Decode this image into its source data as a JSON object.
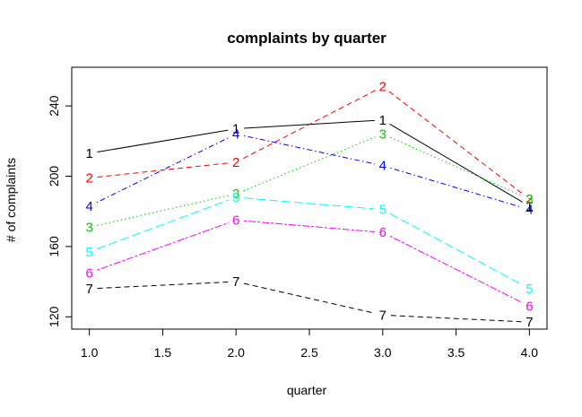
{
  "chart_data": {
    "type": "line",
    "title": "complaints by quarter",
    "xlabel": "quarter",
    "ylabel": "# of complaints",
    "xlim": [
      1.0,
      4.0
    ],
    "ylim": [
      113,
      262
    ],
    "xticks": [
      "1.0",
      "1.5",
      "2.0",
      "2.5",
      "3.0",
      "3.5",
      "4.0"
    ],
    "yticks": [
      "120",
      "160",
      "200",
      "240"
    ],
    "x": [
      1,
      2,
      3,
      4
    ],
    "grid": false,
    "legend": "none",
    "series": [
      {
        "label": "1",
        "values": [
          213,
          227,
          232,
          183
        ],
        "color": "#000000",
        "dash": "solid"
      },
      {
        "label": "2",
        "values": [
          199,
          208,
          251,
          187
        ],
        "color": "#FF0000",
        "dash": "dashed"
      },
      {
        "label": "3",
        "values": [
          171,
          190,
          224,
          187
        ],
        "color": "#00CD00",
        "dash": "dotted"
      },
      {
        "label": "4",
        "values": [
          183,
          224,
          206,
          181
        ],
        "color": "#0000FF",
        "dash": "dotdash"
      },
      {
        "label": "5",
        "values": [
          157,
          188,
          181,
          136
        ],
        "color": "#00FFFF",
        "dash": "longdash"
      },
      {
        "label": "6",
        "values": [
          145,
          175,
          168,
          126
        ],
        "color": "#FF00FF",
        "dash": "twodash"
      },
      {
        "label": "7",
        "values": [
          136,
          140,
          121,
          117
        ],
        "color": "#000000",
        "dash": "dashed"
      }
    ]
  }
}
